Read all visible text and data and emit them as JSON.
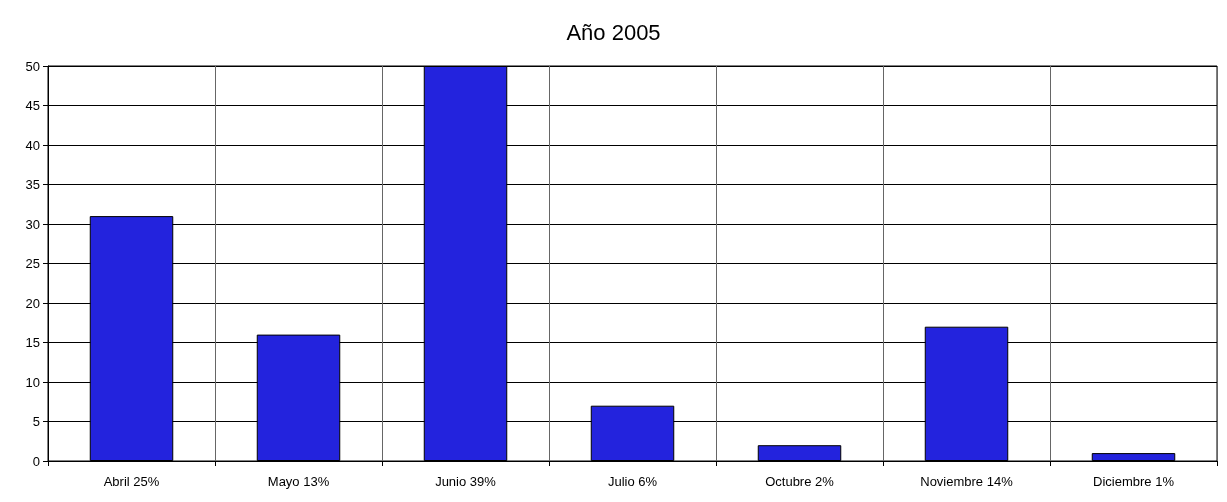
{
  "chart_data": {
    "type": "bar",
    "title": "Año 2005",
    "categories": [
      "Abril 25%",
      "Mayo 13%",
      "Junio 39%",
      "Julio 6%",
      "Octubre 2%",
      "Noviembre 14%",
      "Diciembre 1%"
    ],
    "values": [
      31,
      16,
      50,
      7,
      2,
      17,
      1
    ],
    "color": "#2323dd",
    "ylim": [
      0,
      50
    ],
    "yticks": [
      0,
      5,
      10,
      15,
      20,
      25,
      30,
      35,
      40,
      45,
      50
    ],
    "grid": true
  }
}
